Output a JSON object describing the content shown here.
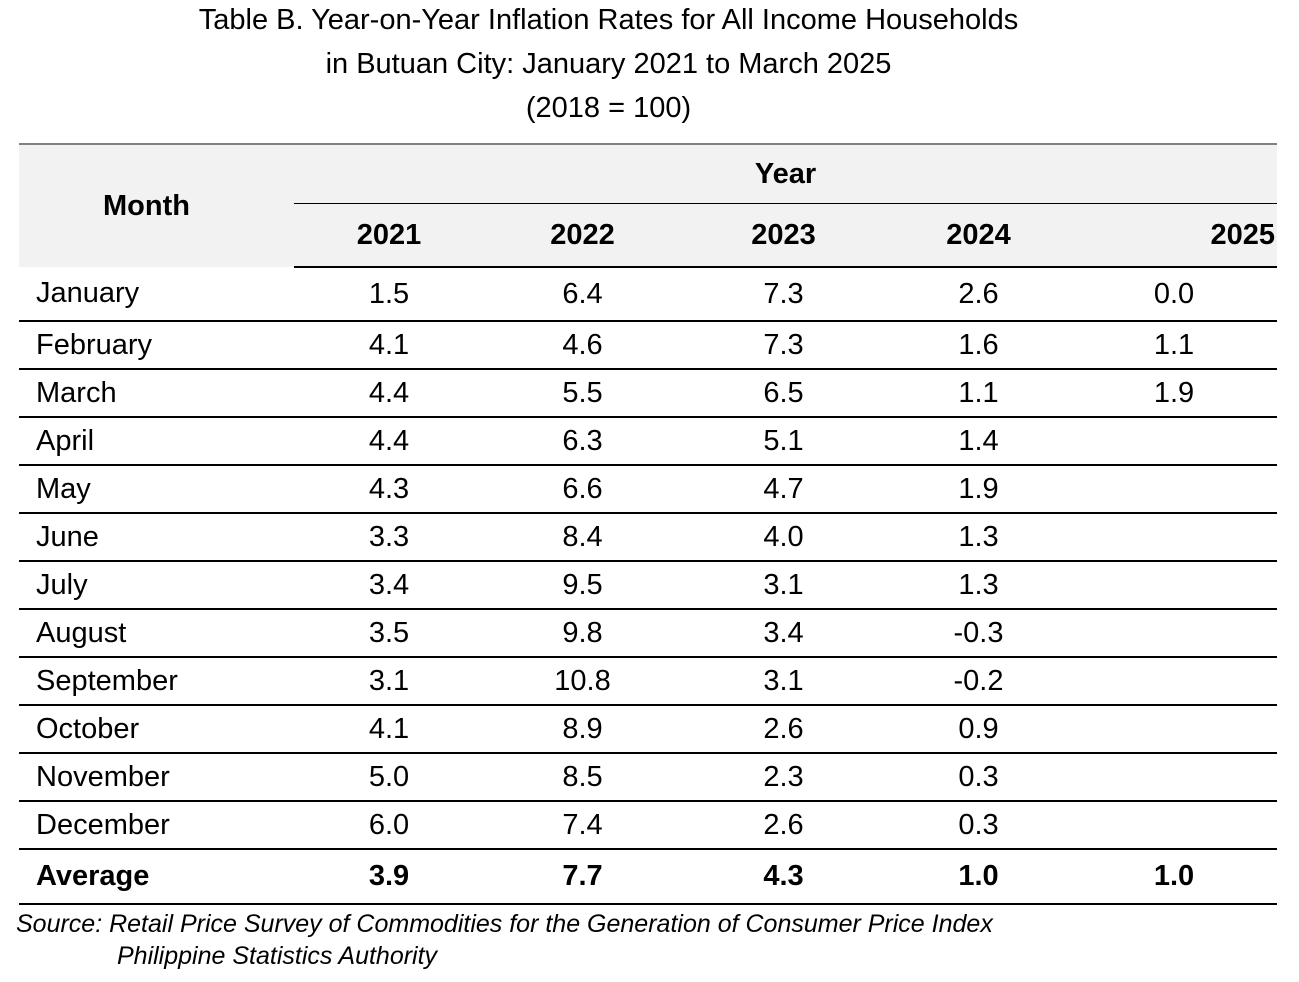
{
  "title": {
    "line1": "Table B. Year-on-Year Inflation Rates for All Income Households",
    "line2": "in Butuan City: January 2021 to March 2025",
    "line3": "(2018 = 100)"
  },
  "table": {
    "month_header": "Month",
    "year_header": "Year",
    "years": [
      "2021",
      "2022",
      "2023",
      "2024",
      "2025"
    ],
    "rows": [
      {
        "month": "January",
        "values": [
          "1.5",
          "6.4",
          "7.3",
          "2.6",
          "0.0"
        ]
      },
      {
        "month": "February",
        "values": [
          "4.1",
          "4.6",
          "7.3",
          "1.6",
          "1.1"
        ]
      },
      {
        "month": "March",
        "values": [
          "4.4",
          "5.5",
          "6.5",
          "1.1",
          "1.9"
        ]
      },
      {
        "month": "April",
        "values": [
          "4.4",
          "6.3",
          "5.1",
          "1.4",
          ""
        ]
      },
      {
        "month": "May",
        "values": [
          "4.3",
          "6.6",
          "4.7",
          "1.9",
          ""
        ]
      },
      {
        "month": "June",
        "values": [
          "3.3",
          "8.4",
          "4.0",
          "1.3",
          ""
        ]
      },
      {
        "month": "July",
        "values": [
          "3.4",
          "9.5",
          "3.1",
          "1.3",
          ""
        ]
      },
      {
        "month": "August",
        "values": [
          "3.5",
          "9.8",
          "3.4",
          "-0.3",
          ""
        ]
      },
      {
        "month": "September",
        "values": [
          "3.1",
          "10.8",
          "3.1",
          "-0.2",
          ""
        ]
      },
      {
        "month": "October",
        "values": [
          "4.1",
          "8.9",
          "2.6",
          "0.9",
          ""
        ]
      },
      {
        "month": "November",
        "values": [
          "5.0",
          "8.5",
          "2.3",
          "0.3",
          ""
        ]
      },
      {
        "month": "December",
        "values": [
          "6.0",
          "7.4",
          "2.6",
          "0.3",
          ""
        ]
      }
    ],
    "average": {
      "label": "Average",
      "values": [
        "3.9",
        "7.7",
        "4.3",
        "1.0",
        "1.0"
      ]
    }
  },
  "source": {
    "line1": "Source: Retail Price Survey of Commodities for the Generation of Consumer Price Index",
    "line2": "Philippine Statistics Authority"
  },
  "colors": {
    "header_background": "#f2f2f2",
    "rule": "#000000",
    "top_rule": "#808080"
  }
}
